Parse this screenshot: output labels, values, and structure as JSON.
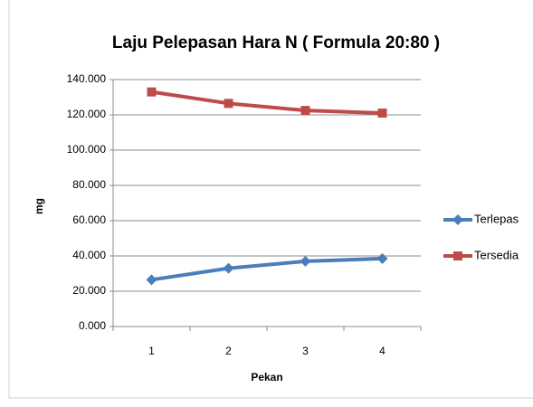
{
  "chart_data": {
    "type": "line",
    "title": "Laju Pelepasan Hara N ( Formula 20:80 )",
    "x_label": "Pekan",
    "y_label": "mg",
    "categories": [
      "1",
      "2",
      "3",
      "4"
    ],
    "series": [
      {
        "name": "Terlepas",
        "color": "#4a7ebb",
        "marker": "diamond",
        "values": [
          26.5,
          33,
          37,
          38.5
        ]
      },
      {
        "name": "Tersedia",
        "color": "#be4b48",
        "marker": "square",
        "values": [
          133,
          126.5,
          122.5,
          121
        ]
      }
    ],
    "ylim": [
      0,
      140
    ],
    "yticks": [
      {
        "value": 0,
        "label": "0.000"
      },
      {
        "value": 20,
        "label": "20.000"
      },
      {
        "value": 40,
        "label": "40.000"
      },
      {
        "value": 60,
        "label": "60.000"
      },
      {
        "value": 80,
        "label": "80.000"
      },
      {
        "value": 100,
        "label": "100.000"
      },
      {
        "value": 120,
        "label": "120.000"
      },
      {
        "value": 140,
        "label": "140.000"
      }
    ],
    "grid": true,
    "legend": "right"
  }
}
